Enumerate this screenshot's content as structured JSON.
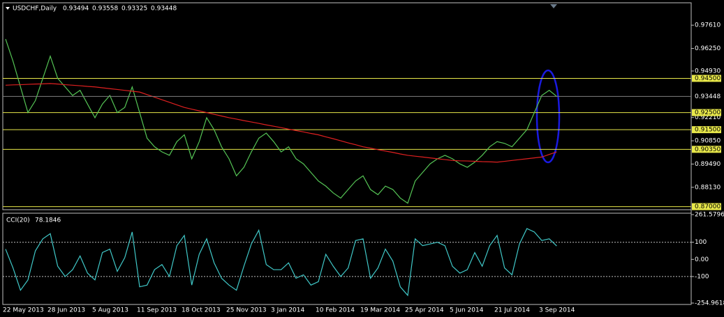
{
  "chart_data": [
    {
      "type": "price",
      "title": "USDCHF,Daily",
      "header_values": [
        0.93494,
        0.93558,
        0.93325
      ],
      "categories": [
        "22 May 2013",
        null,
        null,
        null,
        null,
        null,
        "28 Jun 2013",
        null,
        null,
        null,
        null,
        null,
        "5 Aug 2013",
        null,
        null,
        null,
        null,
        null,
        "11 Sep 2013",
        null,
        null,
        null,
        null,
        null,
        "18 Oct 2013",
        null,
        null,
        null,
        null,
        null,
        "25 Nov 2013",
        null,
        null,
        null,
        null,
        null,
        "3 Jan 2014",
        null,
        null,
        null,
        null,
        null,
        "10 Feb 2014",
        null,
        null,
        null,
        null,
        null,
        "19 Mar 2014",
        null,
        null,
        null,
        null,
        null,
        "25 Apr 2014",
        null,
        null,
        null,
        null,
        null,
        "5 Jun 2014",
        null,
        null,
        null,
        null,
        null,
        "21 Jul 2014",
        null,
        null,
        null,
        null,
        null,
        "3 Sep 2014",
        null,
        null
      ],
      "series": [
        {
          "color": "#55c455",
          "values": [
            0.968,
            0.955,
            0.94,
            0.925,
            0.932,
            0.945,
            0.958,
            0.945,
            0.94,
            0.935,
            0.938,
            0.93,
            0.922,
            0.93,
            0.935,
            0.925,
            0.928,
            0.94,
            0.925,
            0.91,
            0.905,
            0.902,
            0.9,
            0.908,
            0.912,
            0.898,
            0.908,
            0.922,
            0.915,
            0.905,
            0.898,
            0.888,
            0.893,
            0.902,
            0.91,
            0.913,
            0.908,
            0.902,
            0.905,
            0.898,
            0.895,
            0.89,
            0.885,
            0.882,
            0.878,
            0.875,
            0.88,
            0.885,
            0.888,
            0.88,
            0.877,
            0.882,
            0.88,
            0.875,
            0.872,
            0.885,
            0.89,
            0.895,
            0.898,
            0.9,
            0.898,
            0.895,
            0.893,
            0.896,
            0.9,
            0.905,
            0.908,
            0.907,
            0.905,
            0.91,
            0.915,
            0.925,
            0.935,
            0.938,
            0.93448
          ]
        },
        {
          "color": "#e02020",
          "values": [
            0.941,
            0.9412,
            0.9413,
            0.9415,
            0.9417,
            0.9418,
            0.942,
            0.9417,
            0.9413,
            0.941,
            0.9407,
            0.9403,
            0.94,
            0.9395,
            0.939,
            0.9385,
            0.938,
            0.9375,
            0.937,
            0.9355,
            0.934,
            0.9325,
            0.931,
            0.9295,
            0.928,
            0.927,
            0.926,
            0.925,
            0.924,
            0.923,
            0.922,
            0.9212,
            0.9203,
            0.9195,
            0.9187,
            0.9178,
            0.917,
            0.9162,
            0.9153,
            0.9145,
            0.9137,
            0.9128,
            0.912,
            0.9108,
            0.9097,
            0.9085,
            0.9073,
            0.9062,
            0.905,
            0.9042,
            0.9033,
            0.9025,
            0.9017,
            0.9008,
            0.9,
            0.8995,
            0.899,
            0.8985,
            0.898,
            0.8975,
            0.897,
            0.8968,
            0.8967,
            0.8965,
            0.8963,
            0.8962,
            0.896,
            0.8965,
            0.897,
            0.8975,
            0.898,
            0.8985,
            0.899,
            0.9005,
            0.902
          ]
        }
      ],
      "ylim": [
        0.8682,
        0.9892
      ],
      "yticks": [
        {
          "value": 0.9761,
          "label": "0.97610"
        },
        {
          "value": 0.9625,
          "label": "0.96250"
        },
        {
          "value": 0.9493,
          "label": "0.94930"
        },
        {
          "value": 0.9221,
          "label": "0.92210"
        },
        {
          "value": 0.9085,
          "label": "0.90850"
        },
        {
          "value": 0.8949,
          "label": "0.89490"
        },
        {
          "value": 0.8813,
          "label": "0.88130"
        }
      ],
      "levels": [
        {
          "value": 0.945,
          "label": "0.94500"
        },
        {
          "value": 0.925,
          "label": "0.92500"
        },
        {
          "value": 0.915,
          "label": "0.91500"
        },
        {
          "value": 0.9035,
          "label": "0.90350"
        },
        {
          "value": 0.87,
          "label": "0.87000"
        }
      ],
      "level_color": "#e8e84a"
    },
    {
      "type": "line",
      "title": "CCI(20)",
      "series": [
        {
          "color": "#40c8c8",
          "values": [
            60,
            -50,
            -180,
            -120,
            50,
            120,
            150,
            -40,
            -100,
            -60,
            20,
            -80,
            -120,
            40,
            60,
            -70,
            10,
            160,
            -160,
            -150,
            -60,
            -30,
            -100,
            80,
            140,
            -150,
            30,
            120,
            -20,
            -110,
            -150,
            -180,
            -40,
            90,
            170,
            -30,
            -60,
            -60,
            -20,
            -110,
            -90,
            -150,
            -130,
            30,
            -40,
            -100,
            -50,
            110,
            120,
            -110,
            -50,
            60,
            -10,
            -160,
            -210,
            120,
            80,
            90,
            100,
            80,
            -40,
            -80,
            -60,
            40,
            -40,
            80,
            140,
            -50,
            -90,
            90,
            180,
            160,
            110,
            120,
            78.1846
          ]
        }
      ],
      "ylim": [
        -254.9618,
        261.5796
      ],
      "yticks": [
        261.5796,
        100,
        {
          "value": 0,
          "label": "0.00"
        },
        -100,
        -254.9618
      ],
      "levels": [
        100,
        -100
      ]
    }
  ]
}
